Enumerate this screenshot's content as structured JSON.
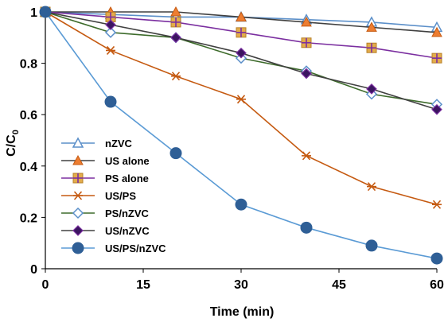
{
  "chart_data": {
    "type": "line",
    "xlabel": "Time (min)",
    "ylabel": "C/C",
    "ylabel_subscript": "0",
    "xlim": [
      0,
      60
    ],
    "ylim": [
      0,
      1
    ],
    "xticks": [
      "0",
      "15",
      "30",
      "45",
      "60"
    ],
    "yticks": [
      "0",
      "0.2",
      "0.4",
      "0.6",
      "0.8",
      "1"
    ],
    "grid": false,
    "legend_position": "bottom-left",
    "series": [
      {
        "name": "nZVC",
        "color": "#5B8FC9",
        "marker": "triangle-open",
        "x": [
          0,
          10,
          20,
          30,
          40,
          50,
          60
        ],
        "y": [
          1.0,
          0.99,
          0.98,
          0.98,
          0.97,
          0.96,
          0.94
        ]
      },
      {
        "name": "US alone",
        "color": "#404040",
        "marker": "triangle-orange",
        "x": [
          0,
          10,
          20,
          30,
          40,
          50,
          60
        ],
        "y": [
          1.0,
          1.0,
          1.0,
          0.98,
          0.96,
          0.94,
          0.92
        ]
      },
      {
        "name": "PS alone",
        "color": "#7B2FA0",
        "marker": "square-plus",
        "x": [
          0,
          10,
          20,
          30,
          40,
          50,
          60
        ],
        "y": [
          1.0,
          0.98,
          0.96,
          0.92,
          0.88,
          0.86,
          0.82
        ]
      },
      {
        "name": "US/PS",
        "color": "#C55A11",
        "marker": "asterisk",
        "x": [
          0,
          10,
          20,
          30,
          40,
          50,
          60
        ],
        "y": [
          1.0,
          0.85,
          0.75,
          0.66,
          0.44,
          0.32,
          0.25
        ]
      },
      {
        "name": "PS/nZVC",
        "color": "#3D6B2B",
        "marker": "diamond-open",
        "x": [
          0,
          10,
          20,
          30,
          40,
          50,
          60
        ],
        "y": [
          1.0,
          0.92,
          0.9,
          0.82,
          0.77,
          0.68,
          0.64
        ]
      },
      {
        "name": "US/nZVC",
        "color": "#404040",
        "marker": "diamond-filled",
        "x": [
          0,
          10,
          20,
          30,
          40,
          50,
          60
        ],
        "y": [
          1.0,
          0.95,
          0.9,
          0.84,
          0.76,
          0.7,
          0.62
        ]
      },
      {
        "name": "US/PS/nZVC",
        "color": "#5B9BD5",
        "marker": "circle-filled",
        "x": [
          0,
          10,
          20,
          30,
          40,
          50,
          60
        ],
        "y": [
          1.0,
          0.65,
          0.45,
          0.25,
          0.16,
          0.09,
          0.04
        ]
      }
    ]
  }
}
